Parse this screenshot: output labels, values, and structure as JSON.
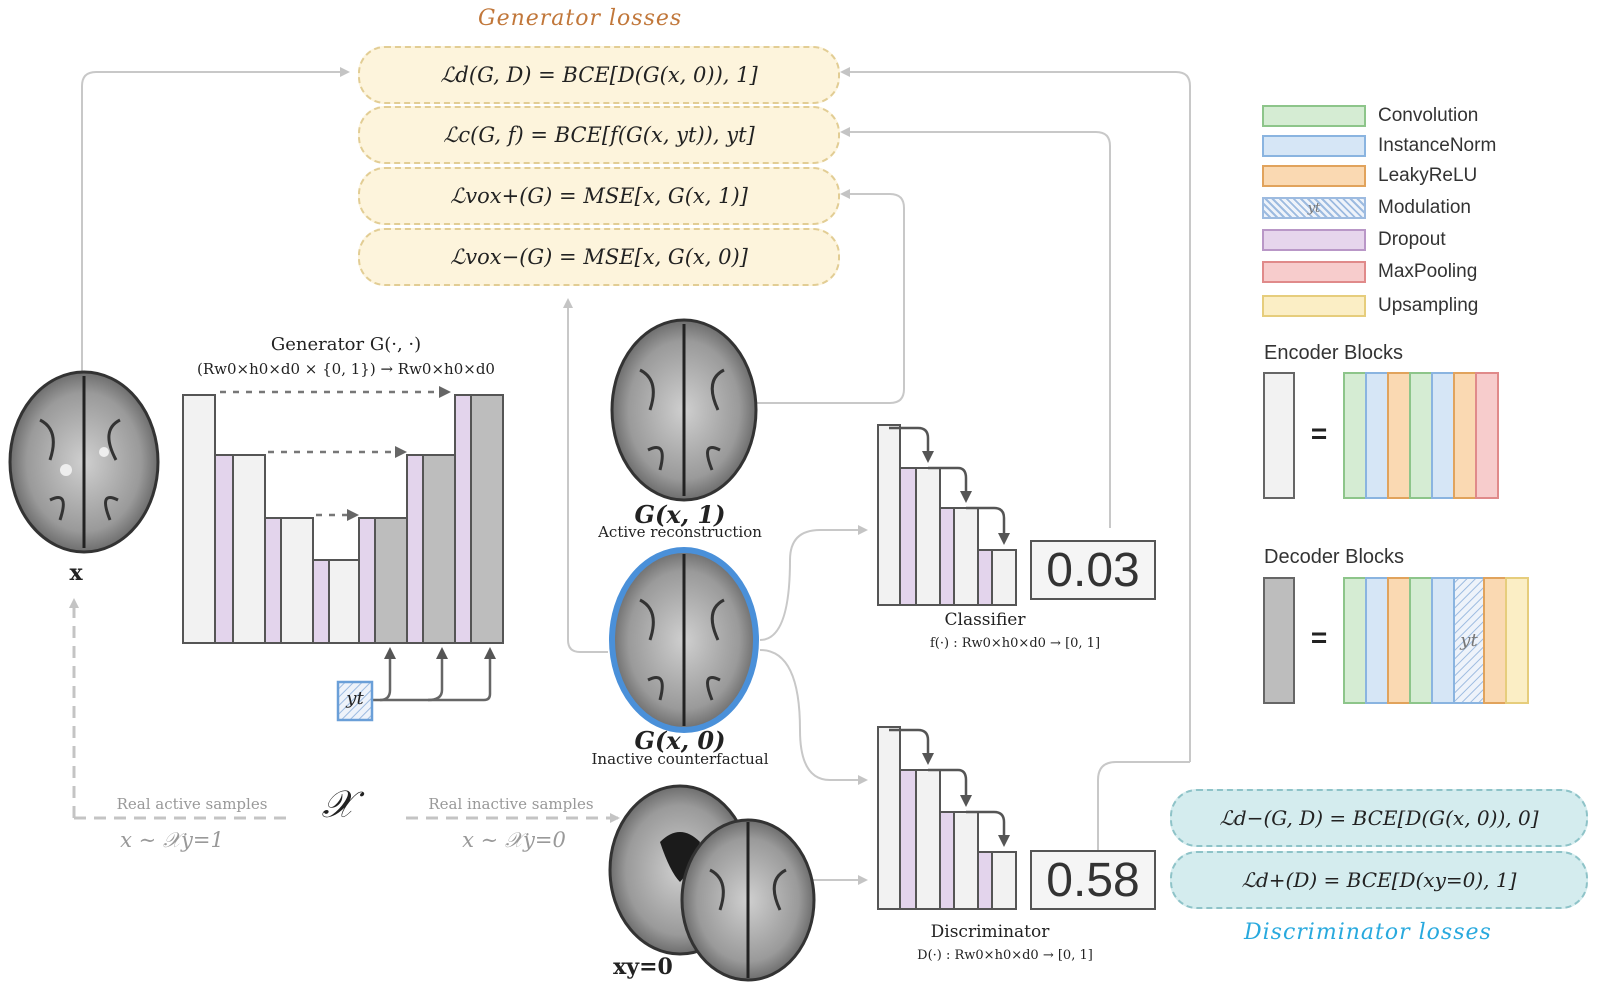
{
  "generator_losses": {
    "title": "Generator losses",
    "items": [
      "ℒd(G, D) = BCE[D(G(x, 0)), 1]",
      "ℒc(G, f) = BCE[f(G(x, yt)), yt]",
      "ℒvox+(G) = MSE[x, G(x, 1)]",
      "ℒvox−(G) = MSE[x, G(x, 0)]"
    ]
  },
  "discriminator_losses": {
    "title": "Discriminator losses",
    "items": [
      "ℒd−(G, D) = BCE[D(G(x, 0)), 0]",
      "ℒd+(D) = BCE[D(xy=0), 1]"
    ]
  },
  "generator": {
    "title": "Generator G(·, ·)",
    "signature": "(Rw0×h0×d0 × {0, 1}) → Rw0×h0×d0",
    "modulation_label": "yt"
  },
  "input": {
    "label": "x"
  },
  "active_recon": {
    "symbol": "G(x, 1)",
    "caption": "Active reconstruction"
  },
  "inactive_cf": {
    "symbol": "G(x, 0)",
    "caption": "Inactive counterfactual"
  },
  "classifier": {
    "title": "Classifier",
    "signature": "f(·) : Rw0×h0×d0 → [0, 1]",
    "score": "0.03"
  },
  "discriminator": {
    "title": "Discriminator",
    "signature": "D(·) : Rw0×h0×d0 → [0, 1]",
    "score": "0.58"
  },
  "dataset": {
    "symbol": "𝒳",
    "active_label": "Real active samples",
    "active_dist": "x ∼ 𝒳y=1",
    "inactive_label": "Real inactive samples",
    "inactive_dist": "x ∼ 𝒳y=0",
    "inactive_sample_label": "xy=0"
  },
  "legend": {
    "items": [
      {
        "label": "Convolution",
        "fill": "#d5ecd3",
        "stroke": "#8dc58a"
      },
      {
        "label": "InstanceNorm",
        "fill": "#d6e6f6",
        "stroke": "#8ab4e0"
      },
      {
        "label": "LeakyReLU",
        "fill": "#fad9b2",
        "stroke": "#e1a35c"
      },
      {
        "label": "Modulation",
        "fill": "#e8f0f8",
        "stroke": "#9dbbe0",
        "hatch": true,
        "tag": "yt"
      },
      {
        "label": "Dropout",
        "fill": "#e6d5ec",
        "stroke": "#b997c7"
      },
      {
        "label": "MaxPooling",
        "fill": "#f7cccc",
        "stroke": "#e08a8a"
      },
      {
        "label": "Upsampling",
        "fill": "#fbeec5",
        "stroke": "#e6cd7c"
      }
    ],
    "encoder_title": "Encoder Blocks",
    "decoder_title": "Decoder Blocks",
    "equals": "="
  },
  "colors": {
    "generator_pill": "#fdf4dc",
    "discriminator_pill": "#d4ecee",
    "generator_title": "#c1773a",
    "discriminator_title": "#28a9de",
    "counterfactual_outline": "#4a90d9"
  }
}
